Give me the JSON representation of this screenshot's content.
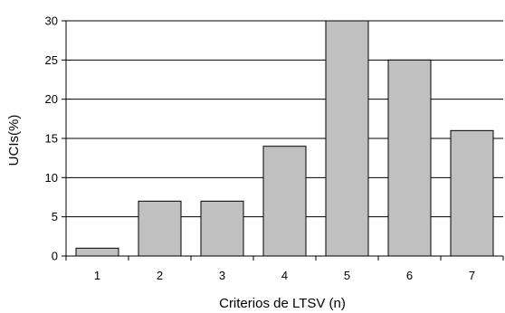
{
  "chart_data": {
    "type": "bar",
    "categories": [
      "1",
      "2",
      "3",
      "4",
      "5",
      "6",
      "7"
    ],
    "values": [
      1,
      7,
      7,
      14,
      30,
      25,
      16
    ],
    "xlabel": "Criterios de LTSV (n)",
    "ylabel": "UCIs(%)",
    "ylim": [
      0,
      30
    ],
    "yticks": [
      0,
      5,
      10,
      15,
      20,
      25,
      30
    ],
    "grid": true,
    "bar_color": "#c0c0c0",
    "bar_edge_color": "#000000"
  }
}
